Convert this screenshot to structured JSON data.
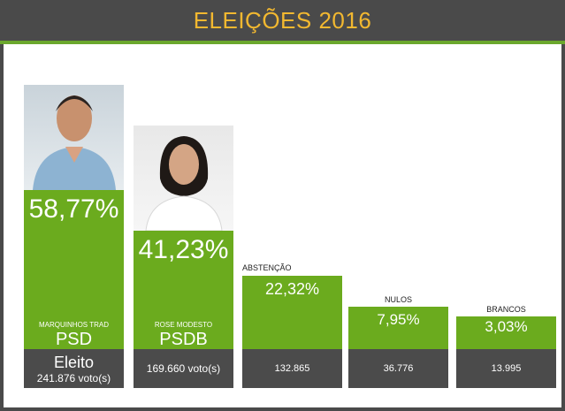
{
  "header": {
    "title": "ELEIÇÕES 2016"
  },
  "colors": {
    "accent_green": "#6bab1e",
    "title_gold": "#f2b830",
    "dark_gray": "#4b4b4b"
  },
  "candidates": [
    {
      "name": "MARQUINHOS TRAD",
      "party": "PSD",
      "percent": "58,77%",
      "status": "Eleito",
      "votes": "241.876 voto(s)"
    },
    {
      "name": "ROSE MODESTO",
      "party": "PSDB",
      "percent": "41,23%",
      "votes": "169.660 voto(s)"
    }
  ],
  "others": [
    {
      "label": "ABSTENÇÃO",
      "percent": "22,32%",
      "count": "132.865"
    },
    {
      "label": "NULOS",
      "percent": "7,95%",
      "count": "36.776"
    },
    {
      "label": "BRANCOS",
      "percent": "3,03%",
      "count": "13.995"
    }
  ],
  "chart_data": {
    "type": "bar",
    "title": "ELEIÇÕES 2016",
    "categories": [
      "MARQUINHOS TRAD",
      "ROSE MODESTO",
      "ABSTENÇÃO",
      "NULOS",
      "BRANCOS"
    ],
    "values": [
      58.77,
      41.23,
      22.32,
      7.95,
      3.03
    ],
    "counts": [
      241876,
      169660,
      132865,
      36776,
      13995
    ]
  }
}
